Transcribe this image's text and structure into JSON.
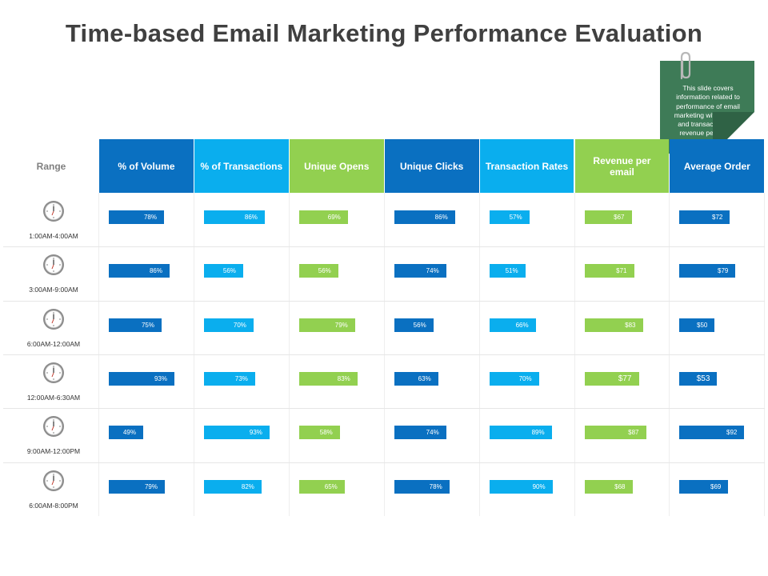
{
  "title": "Time-based Email Marketing Performance Evaluation",
  "note": "This slide covers information related to performance of email marketing with volume and transaction with revenue per Email.",
  "icons": {
    "clock": "clock-icon",
    "paperclip": "paperclip-icon"
  },
  "colors": {
    "dark_blue": "#0a70c1",
    "light_blue": "#0aaeee",
    "green": "#92d050",
    "note_green": "#3e7b57",
    "title_gray": "#404040"
  },
  "chart_data": {
    "type": "table",
    "range_header": "Range",
    "columns": [
      {
        "key": "volume",
        "label": "% of Volume",
        "color": "#0a70c1"
      },
      {
        "key": "transactions",
        "label": "% of Transactions",
        "color": "#0aaeee"
      },
      {
        "key": "opens",
        "label": "Unique Opens",
        "color": "#92d050"
      },
      {
        "key": "clicks",
        "label": "Unique Clicks",
        "color": "#0a70c1"
      },
      {
        "key": "rates",
        "label": "Transaction Rates",
        "color": "#0aaeee"
      },
      {
        "key": "revenue",
        "label": "Revenue per email",
        "color": "#92d050"
      },
      {
        "key": "order",
        "label": "Average Order",
        "color": "#0a70c1"
      }
    ],
    "rows": [
      {
        "range": "1:00AM-4:00AM",
        "labels": [
          "78%",
          "86%",
          "69%",
          "86%",
          "57%",
          "$67",
          "$72"
        ],
        "values": [
          78,
          86,
          69,
          86,
          57,
          67,
          72
        ]
      },
      {
        "range": "3:00AM-9:00AM",
        "labels": [
          "86%",
          "56%",
          "56%",
          "74%",
          "51%",
          "$71",
          "$79"
        ],
        "values": [
          86,
          56,
          56,
          74,
          51,
          71,
          79
        ]
      },
      {
        "range": "6:00AM-12:00AM",
        "labels": [
          "75%",
          "70%",
          "79%",
          "56%",
          "66%",
          "$83",
          "$50"
        ],
        "values": [
          75,
          70,
          79,
          56,
          66,
          83,
          50
        ]
      },
      {
        "range": "12:00AM-6:30AM",
        "labels": [
          "93%",
          "73%",
          "83%",
          "63%",
          "70%",
          "$77",
          "$53"
        ],
        "values": [
          93,
          73,
          83,
          63,
          70,
          77,
          53
        ]
      },
      {
        "range": "9:00AM-12:00PM",
        "labels": [
          "49%",
          "93%",
          "58%",
          "74%",
          "89%",
          "$87",
          "$92"
        ],
        "values": [
          49,
          93,
          58,
          74,
          89,
          87,
          92
        ]
      },
      {
        "range": "6:00AM-8:00PM",
        "labels": [
          "79%",
          "82%",
          "65%",
          "78%",
          "90%",
          "$68",
          "$69"
        ],
        "values": [
          79,
          82,
          65,
          78,
          90,
          68,
          69
        ]
      }
    ]
  }
}
